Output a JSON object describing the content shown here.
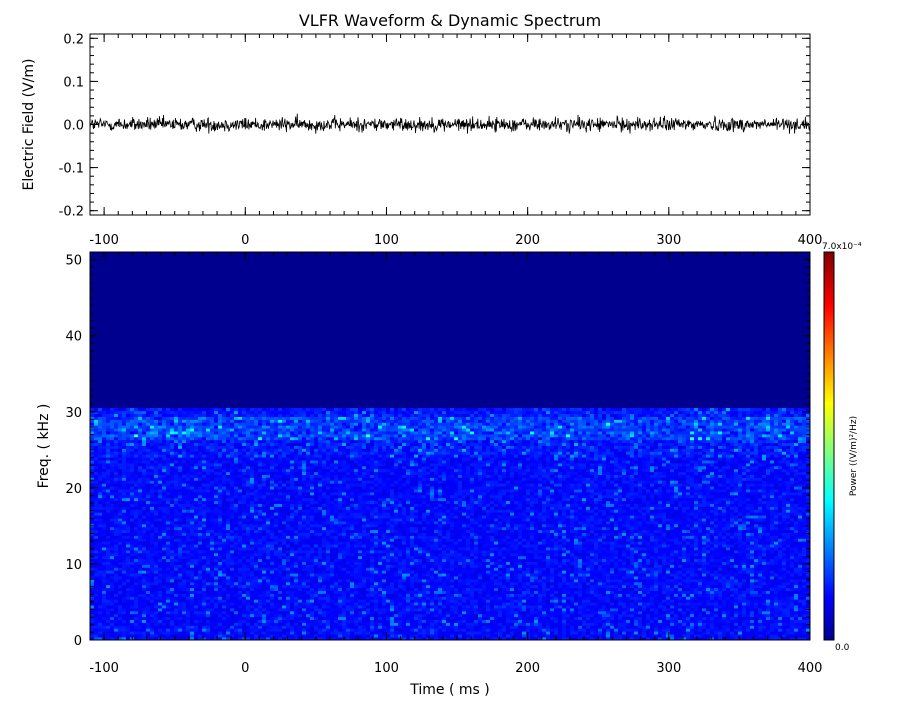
{
  "chart_data": [
    {
      "type": "line",
      "title": "VLFR Waveform & Dynamic Spectrum",
      "xlabel": "",
      "ylabel": "Electric Field  (V/m)",
      "xlim": [
        -110,
        400
      ],
      "ylim": [
        -0.21,
        0.21
      ],
      "x_ticks": [
        -100,
        0,
        100,
        200,
        300,
        400
      ],
      "y_ticks": [
        -0.2,
        -0.1,
        0.0,
        0.1,
        0.2
      ],
      "y_tick_labels": [
        "-0.2",
        "-0.1",
        "0.0",
        "0.1",
        "0.2"
      ],
      "x_tick_labels": [
        "-100",
        "0",
        "100",
        "200",
        "300",
        "400"
      ],
      "series": [
        {
          "description": "noise-like waveform",
          "mean": 0.0,
          "amplitude_typical": 0.018,
          "amplitude_max": 0.03
        }
      ],
      "color": "#000000"
    },
    {
      "type": "heatmap",
      "xlabel": "Time ( ms )",
      "ylabel": "Freq. ( kHz )",
      "xlim": [
        -110,
        400
      ],
      "ylim": [
        0,
        51
      ],
      "x_ticks": [
        -100,
        0,
        100,
        200,
        300,
        400
      ],
      "x_tick_labels": [
        "-100",
        "0",
        "100",
        "200",
        "300",
        "400"
      ],
      "y_ticks": [
        0,
        10,
        20,
        30,
        40,
        50
      ],
      "y_tick_labels": [
        "0",
        "10",
        "20",
        "30",
        "40",
        "50"
      ],
      "power_present_below_khz": 30.5,
      "enhanced_band_khz": [
        26,
        29
      ],
      "colorbar": {
        "label": "Power   ((V/m)²/Hz)",
        "min_label": "0.0",
        "max_label": "7.0x10⁻⁴",
        "min": 0.0,
        "max": 0.0007,
        "colormap": "jet"
      }
    }
  ]
}
